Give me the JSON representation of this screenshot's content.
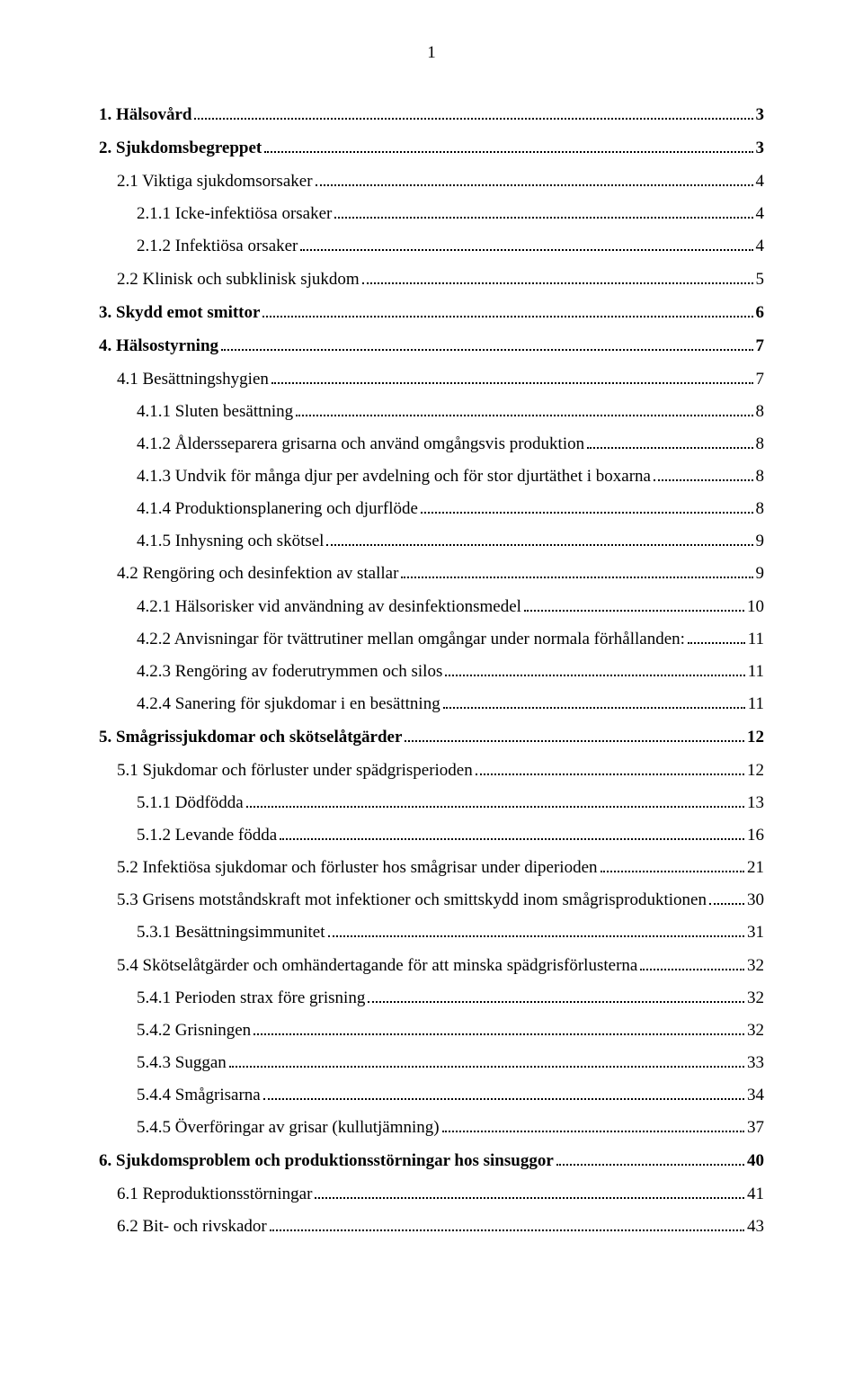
{
  "page_number": "1",
  "toc": [
    {
      "level": 1,
      "title": "1. Hälsovård",
      "page": "3"
    },
    {
      "level": 1,
      "title": "2. Sjukdomsbegreppet",
      "page": "3"
    },
    {
      "level": 2,
      "title": "2.1 Viktiga sjukdomsorsaker",
      "page": "4"
    },
    {
      "level": 3,
      "title": "2.1.1 Icke-infektiösa orsaker",
      "page": "4"
    },
    {
      "level": 3,
      "title": "2.1.2 Infektiösa orsaker",
      "page": "4"
    },
    {
      "level": 2,
      "title": "2.2 Klinisk och subklinisk sjukdom",
      "page": "5"
    },
    {
      "level": 1,
      "title": "3. Skydd emot smittor",
      "page": "6"
    },
    {
      "level": 1,
      "title": "4. Hälsostyrning",
      "page": "7"
    },
    {
      "level": 2,
      "title": "4.1 Besättningshygien",
      "page": "7"
    },
    {
      "level": 3,
      "title": "4.1.1 Sluten besättning",
      "page": "8"
    },
    {
      "level": 3,
      "title": "4.1.2 Åldersseparera grisarna och använd omgångsvis produktion",
      "page": "8"
    },
    {
      "level": 3,
      "title": "4.1.3 Undvik för många djur per avdelning och för stor djurtäthet i boxarna",
      "page": "8"
    },
    {
      "level": 3,
      "title": "4.1.4 Produktionsplanering och djurflöde",
      "page": "8"
    },
    {
      "level": 3,
      "title": "4.1.5 Inhysning och skötsel",
      "page": "9"
    },
    {
      "level": 2,
      "title": "4.2 Rengöring och desinfektion av stallar",
      "page": "9"
    },
    {
      "level": 3,
      "title": "4.2.1 Hälsorisker vid användning av desinfektionsmedel",
      "page": "10"
    },
    {
      "level": 3,
      "title": "4.2.2 Anvisningar för tvättrutiner mellan omgångar under normala förhållanden:",
      "page": "11"
    },
    {
      "level": 3,
      "title": "4.2.3 Rengöring av foderutrymmen och silos",
      "page": "11"
    },
    {
      "level": 3,
      "title": "4.2.4 Sanering för sjukdomar i en besättning",
      "page": "11"
    },
    {
      "level": 1,
      "title": "5. Smågrissjukdomar och skötselåtgärder",
      "page": "12"
    },
    {
      "level": 2,
      "title": "5.1 Sjukdomar och förluster under spädgrisperioden",
      "page": "12"
    },
    {
      "level": 3,
      "title": "5.1.1 Dödfödda",
      "page": "13"
    },
    {
      "level": 3,
      "title": "5.1.2 Levande födda",
      "page": "16"
    },
    {
      "level": 2,
      "title": "5.2 Infektiösa sjukdomar och förluster hos smågrisar under diperioden",
      "page": "21"
    },
    {
      "level": 2,
      "title": "5.3 Grisens motståndskraft mot infektioner och smittskydd inom smågrisproduktionen",
      "page": "30"
    },
    {
      "level": 3,
      "title": "5.3.1 Besättningsimmunitet",
      "page": "31"
    },
    {
      "level": 2,
      "title": "5.4 Skötselåtgärder och omhändertagande för att minska spädgrisförlusterna",
      "page": "32"
    },
    {
      "level": 3,
      "title": "5.4.1 Perioden strax före grisning",
      "page": "32"
    },
    {
      "level": 3,
      "title": "5.4.2 Grisningen",
      "page": "32"
    },
    {
      "level": 3,
      "title": "5.4.3 Suggan",
      "page": "33"
    },
    {
      "level": 3,
      "title": "5.4.4 Smågrisarna",
      "page": "34"
    },
    {
      "level": 3,
      "title": "5.4.5 Överföringar av grisar (kullutjämning)",
      "page": "37"
    },
    {
      "level": 1,
      "title": "6. Sjukdomsproblem och produktionsstörningar hos sinsuggor",
      "page": "40"
    },
    {
      "level": 2,
      "title": "6.1 Reproduktionsstörningar",
      "page": "41"
    },
    {
      "level": 2,
      "title": "6.2 Bit- och rivskador",
      "page": "43"
    }
  ]
}
